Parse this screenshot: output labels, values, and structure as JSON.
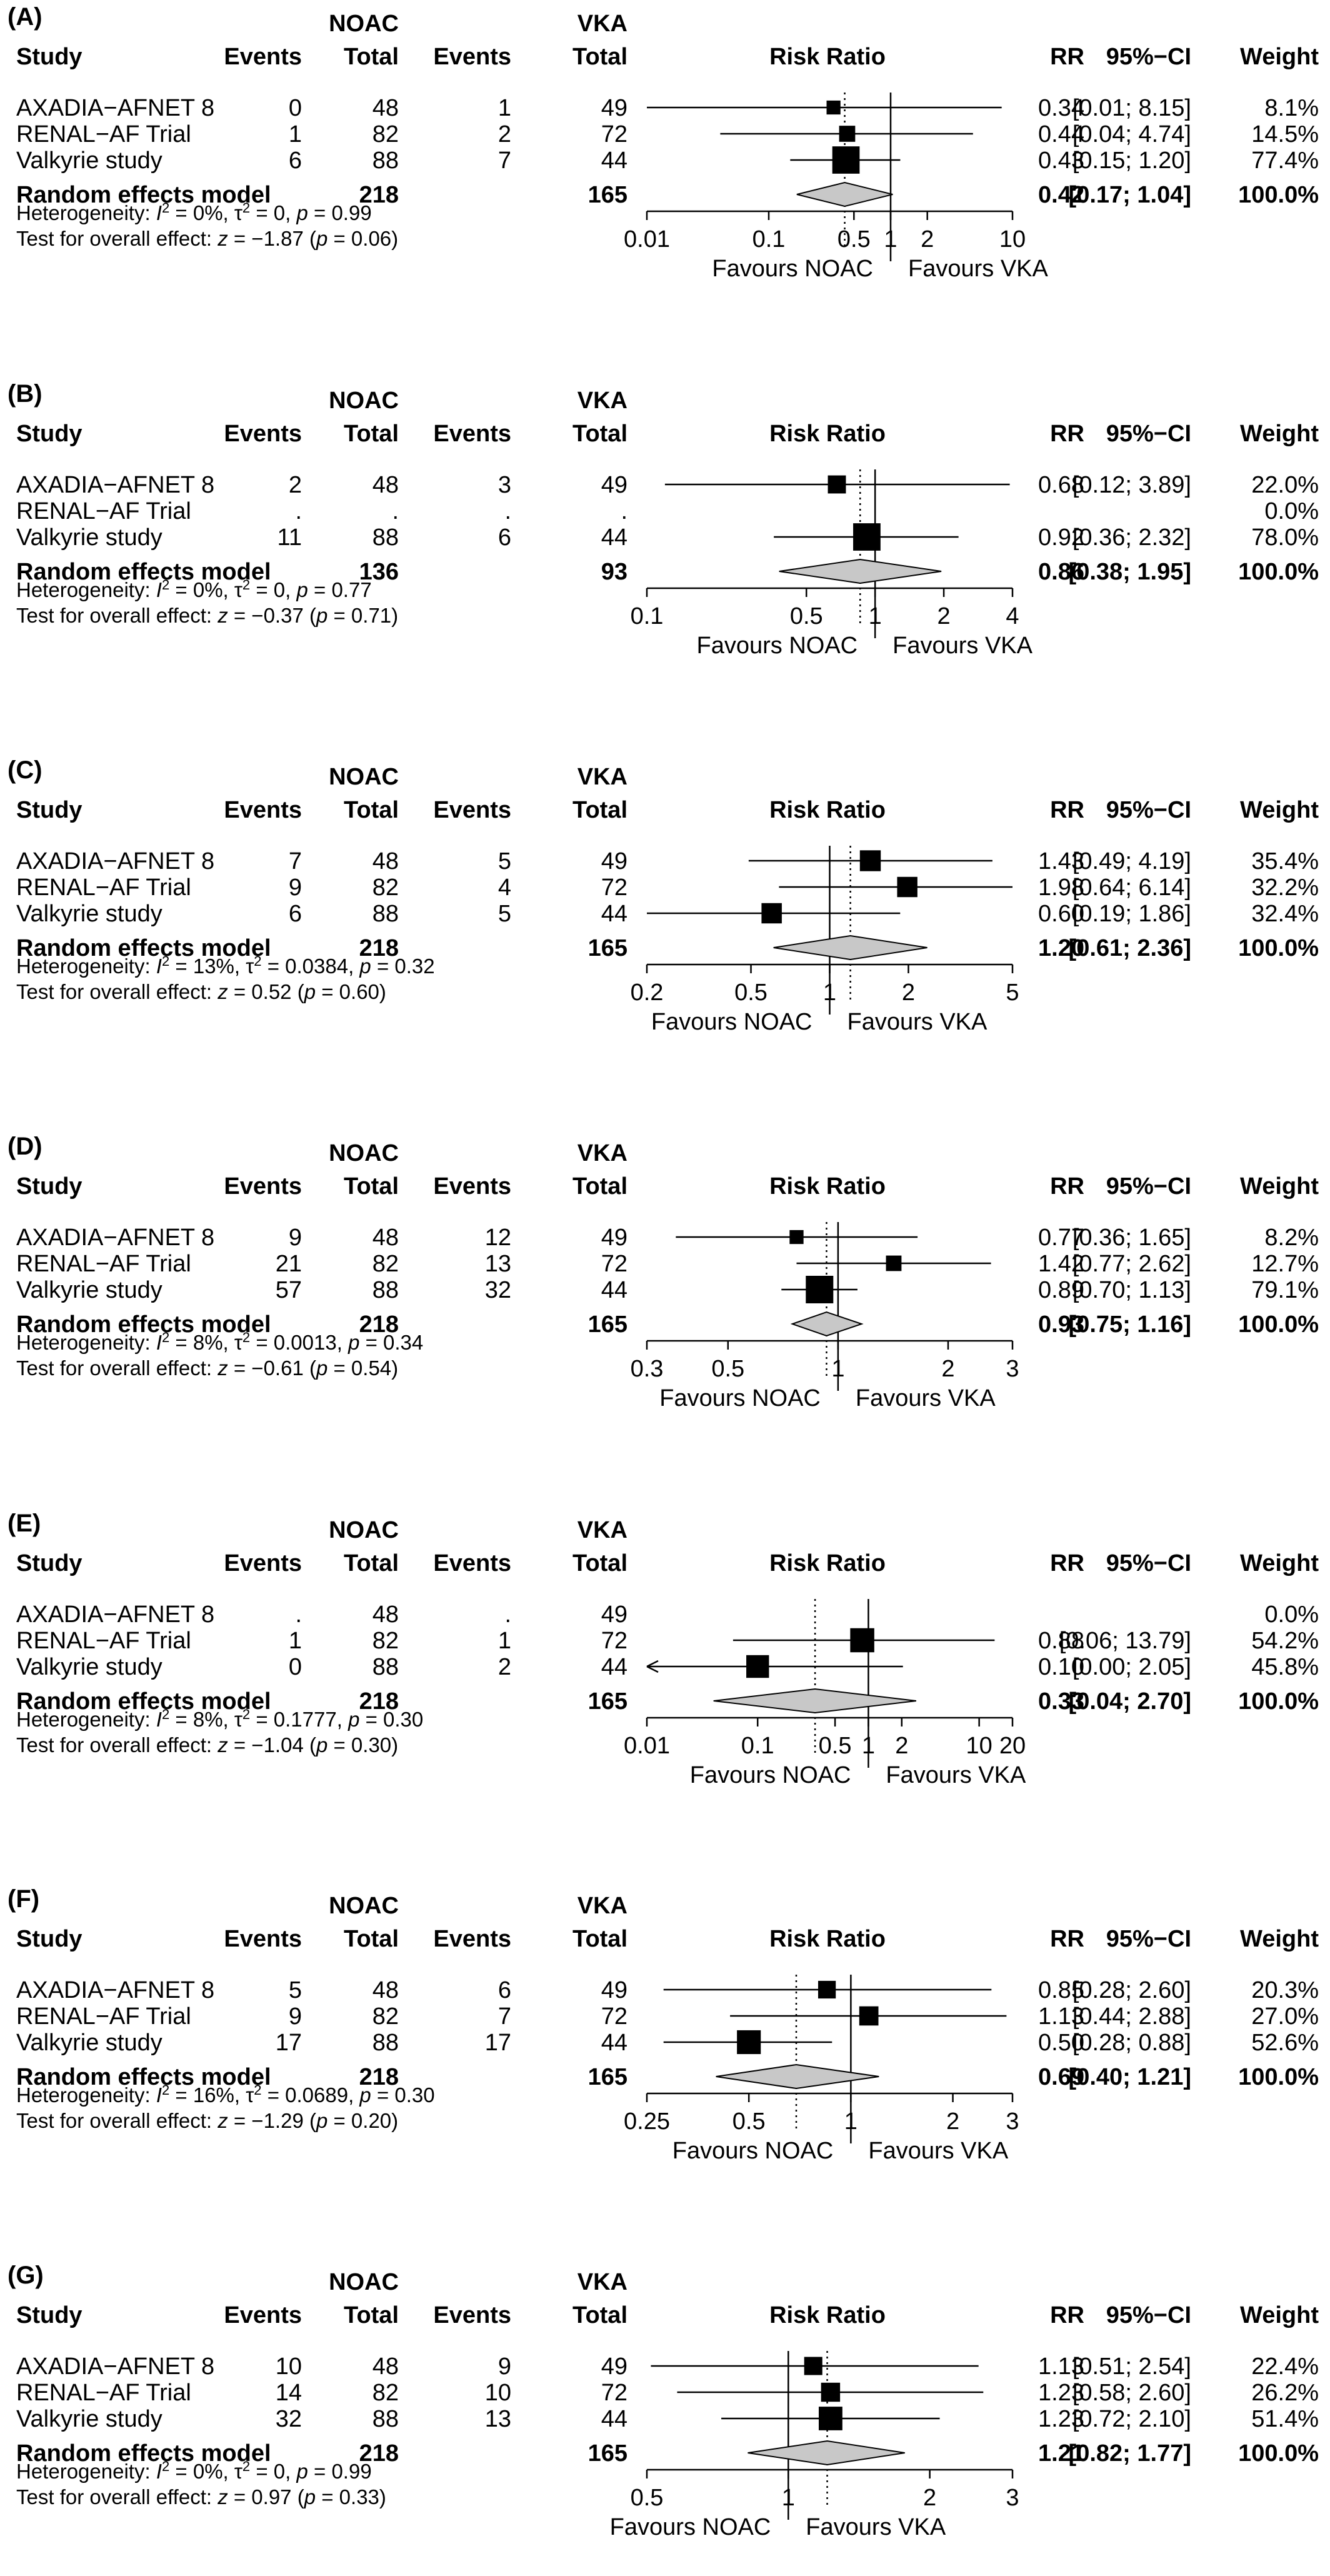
{
  "chart_data": [
    {
      "type": "forest",
      "panel": "(A)",
      "header": {
        "group1": "NOAC",
        "group2": "VKA",
        "study": "Study",
        "events": "Events",
        "total": "Total",
        "plot": "Risk Ratio",
        "rr": "RR",
        "ci": "95%−CI",
        "weight": "Weight"
      },
      "studies": [
        {
          "name": "AXADIA−AFNET 8",
          "e1": "0",
          "n1": "48",
          "e2": "1",
          "n2": "49",
          "rr": 0.34,
          "lo": 0.01,
          "hi": 8.15,
          "rr_text": "0.34",
          "ci_text": "[0.01; 8.15]",
          "weight_text": "8.1%",
          "weight": 8.1,
          "arrow_left": false
        },
        {
          "name": "RENAL−AF Trial",
          "e1": "1",
          "n1": "82",
          "e2": "2",
          "n2": "72",
          "rr": 0.44,
          "lo": 0.04,
          "hi": 4.74,
          "rr_text": "0.44",
          "ci_text": "[0.04; 4.74]",
          "weight_text": "14.5%",
          "weight": 14.5,
          "arrow_left": false
        },
        {
          "name": "Valkyrie study",
          "e1": "6",
          "n1": "88",
          "e2": "7",
          "n2": "44",
          "rr": 0.43,
          "lo": 0.15,
          "hi": 1.2,
          "rr_text": "0.43",
          "ci_text": "[0.15; 1.20]",
          "weight_text": "77.4%",
          "weight": 77.4,
          "arrow_left": false
        }
      ],
      "summary": {
        "label": "Random effects model",
        "n1": "218",
        "n2": "165",
        "rr": 0.42,
        "lo": 0.17,
        "hi": 1.04,
        "rr_text": "0.42",
        "ci_text": "[0.17; 1.04]",
        "weight_text": "100.0%"
      },
      "heterogeneity": {
        "prefix": "Heterogeneity: ",
        "i2": "I",
        "i2_rest": " = 0%, ",
        "tau": "τ",
        "tau_rest": " = 0, ",
        "p": "p",
        "p_rest": " = 0.99"
      },
      "overall_test": {
        "prefix": "Test for overall effect: ",
        "z": "z",
        "z_rest": " = −1.87 (",
        "p": "p",
        "p_rest": " = 0.06)"
      },
      "axis": {
        "scale": "log",
        "min": 0.01,
        "max": 10,
        "ticks": [
          0.01,
          0.1,
          0.5,
          1,
          2,
          10
        ],
        "tick_labels": [
          "0.01",
          "0.1",
          "0.5",
          "1",
          "2",
          "10"
        ],
        "favours_left": "Favours NOAC",
        "favours_right": "Favours VKA"
      }
    },
    {
      "type": "forest",
      "panel": "(B)",
      "header": {
        "group1": "NOAC",
        "group2": "VKA",
        "study": "Study",
        "events": "Events",
        "total": "Total",
        "plot": "Risk Ratio",
        "rr": "RR",
        "ci": "95%−CI",
        "weight": "Weight"
      },
      "studies": [
        {
          "name": "AXADIA−AFNET 8",
          "e1": "2",
          "n1": "48",
          "e2": "3",
          "n2": "49",
          "rr": 0.68,
          "lo": 0.12,
          "hi": 3.89,
          "rr_text": "0.68",
          "ci_text": "[0.12; 3.89]",
          "weight_text": "22.0%",
          "weight": 22.0,
          "arrow_left": false
        },
        {
          "name": "RENAL−AF Trial",
          "e1": ".",
          "n1": ".",
          "e2": ".",
          "n2": ".",
          "rr": null,
          "lo": null,
          "hi": null,
          "rr_text": "",
          "ci_text": "",
          "weight_text": "0.0%",
          "weight": 0,
          "arrow_left": false
        },
        {
          "name": "Valkyrie study",
          "e1": "11",
          "n1": "88",
          "e2": "6",
          "n2": "44",
          "rr": 0.92,
          "lo": 0.36,
          "hi": 2.32,
          "rr_text": "0.92",
          "ci_text": "[0.36; 2.32]",
          "weight_text": "78.0%",
          "weight": 78.0,
          "arrow_left": false
        }
      ],
      "summary": {
        "label": "Random effects model",
        "n1": "136",
        "n2": "93",
        "rr": 0.86,
        "lo": 0.38,
        "hi": 1.95,
        "rr_text": "0.86",
        "ci_text": "[0.38; 1.95]",
        "weight_text": "100.0%"
      },
      "heterogeneity": {
        "prefix": "Heterogeneity: ",
        "i2": "I",
        "i2_rest": " = 0%, ",
        "tau": "τ",
        "tau_rest": " = 0, ",
        "p": "p",
        "p_rest": " = 0.77"
      },
      "overall_test": {
        "prefix": "Test for overall effect: ",
        "z": "z",
        "z_rest": " = −0.37 (",
        "p": "p",
        "p_rest": " = 0.71)"
      },
      "axis": {
        "scale": "log",
        "min": 0.1,
        "max": 4,
        "ticks": [
          0.1,
          0.5,
          1,
          2,
          4
        ],
        "tick_labels": [
          "0.1",
          "0.5",
          "1",
          "2",
          "4"
        ],
        "favours_left": "Favours NOAC",
        "favours_right": "Favours VKA"
      }
    },
    {
      "type": "forest",
      "panel": "(C)",
      "header": {
        "group1": "NOAC",
        "group2": "VKA",
        "study": "Study",
        "events": "Events",
        "total": "Total",
        "plot": "Risk Ratio",
        "rr": "RR",
        "ci": "95%−CI",
        "weight": "Weight"
      },
      "studies": [
        {
          "name": "AXADIA−AFNET 8",
          "e1": "7",
          "n1": "48",
          "e2": "5",
          "n2": "49",
          "rr": 1.43,
          "lo": 0.49,
          "hi": 4.19,
          "rr_text": "1.43",
          "ci_text": "[0.49; 4.19]",
          "weight_text": "35.4%",
          "weight": 35.4,
          "arrow_left": false
        },
        {
          "name": "RENAL−AF Trial",
          "e1": "9",
          "n1": "82",
          "e2": "4",
          "n2": "72",
          "rr": 1.98,
          "lo": 0.64,
          "hi": 6.14,
          "rr_text": "1.98",
          "ci_text": "[0.64; 6.14]",
          "weight_text": "32.2%",
          "weight": 32.2,
          "arrow_left": false
        },
        {
          "name": "Valkyrie study",
          "e1": "6",
          "n1": "88",
          "e2": "5",
          "n2": "44",
          "rr": 0.6,
          "lo": 0.19,
          "hi": 1.86,
          "rr_text": "0.60",
          "ci_text": "[0.19; 1.86]",
          "weight_text": "32.4%",
          "weight": 32.4,
          "arrow_left": false
        }
      ],
      "summary": {
        "label": "Random effects model",
        "n1": "218",
        "n2": "165",
        "rr": 1.2,
        "lo": 0.61,
        "hi": 2.36,
        "rr_text": "1.20",
        "ci_text": "[0.61; 2.36]",
        "weight_text": "100.0%"
      },
      "heterogeneity": {
        "prefix": "Heterogeneity: ",
        "i2": "I",
        "i2_rest": " = 13%, ",
        "tau": "τ",
        "tau_rest": " = 0.0384, ",
        "p": "p",
        "p_rest": " = 0.32"
      },
      "overall_test": {
        "prefix": "Test for overall effect: ",
        "z": "z",
        "z_rest": " = 0.52 (",
        "p": "p",
        "p_rest": " = 0.60)"
      },
      "axis": {
        "scale": "log",
        "min": 0.2,
        "max": 5,
        "ticks": [
          0.2,
          0.5,
          1,
          2,
          5
        ],
        "tick_labels": [
          "0.2",
          "0.5",
          "1",
          "2",
          "5"
        ],
        "favours_left": "Favours NOAC",
        "favours_right": "Favours VKA"
      }
    },
    {
      "type": "forest",
      "panel": "(D)",
      "header": {
        "group1": "NOAC",
        "group2": "VKA",
        "study": "Study",
        "events": "Events",
        "total": "Total",
        "plot": "Risk Ratio",
        "rr": "RR",
        "ci": "95%−CI",
        "weight": "Weight"
      },
      "studies": [
        {
          "name": "AXADIA−AFNET 8",
          "e1": "9",
          "n1": "48",
          "e2": "12",
          "n2": "49",
          "rr": 0.77,
          "lo": 0.36,
          "hi": 1.65,
          "rr_text": "0.77",
          "ci_text": "[0.36; 1.65]",
          "weight_text": "8.2%",
          "weight": 8.2,
          "arrow_left": false
        },
        {
          "name": "RENAL−AF Trial",
          "e1": "21",
          "n1": "82",
          "e2": "13",
          "n2": "72",
          "rr": 1.42,
          "lo": 0.77,
          "hi": 2.62,
          "rr_text": "1.42",
          "ci_text": "[0.77; 2.62]",
          "weight_text": "12.7%",
          "weight": 12.7,
          "arrow_left": false
        },
        {
          "name": "Valkyrie study",
          "e1": "57",
          "n1": "88",
          "e2": "32",
          "n2": "44",
          "rr": 0.89,
          "lo": 0.7,
          "hi": 1.13,
          "rr_text": "0.89",
          "ci_text": "[0.70; 1.13]",
          "weight_text": "79.1%",
          "weight": 79.1,
          "arrow_left": false
        }
      ],
      "summary": {
        "label": "Random effects model",
        "n1": "218",
        "n2": "165",
        "rr": 0.93,
        "lo": 0.75,
        "hi": 1.16,
        "rr_text": "0.93",
        "ci_text": "[0.75; 1.16]",
        "weight_text": "100.0%"
      },
      "heterogeneity": {
        "prefix": "Heterogeneity: ",
        "i2": "I",
        "i2_rest": " = 8%, ",
        "tau": "τ",
        "tau_rest": " = 0.0013, ",
        "p": "p",
        "p_rest": " = 0.34"
      },
      "overall_test": {
        "prefix": "Test for overall effect: ",
        "z": "z",
        "z_rest": " = −0.61 (",
        "p": "p",
        "p_rest": " = 0.54)"
      },
      "axis": {
        "scale": "log",
        "min": 0.3,
        "max": 3,
        "ticks": [
          0.3,
          0.5,
          1,
          2,
          3
        ],
        "tick_labels": [
          "0.3",
          "0.5",
          "1",
          "2",
          "3"
        ],
        "favours_left": "Favours NOAC",
        "favours_right": "Favours VKA"
      }
    },
    {
      "type": "forest",
      "panel": "(E)",
      "header": {
        "group1": "NOAC",
        "group2": "VKA",
        "study": "Study",
        "events": "Events",
        "total": "Total",
        "plot": "Risk Ratio",
        "rr": "RR",
        "ci": "95%−CI",
        "weight": "Weight"
      },
      "studies": [
        {
          "name": "AXADIA−AFNET 8",
          "e1": ".",
          "n1": "48",
          "e2": ".",
          "n2": "49",
          "rr": null,
          "lo": null,
          "hi": null,
          "rr_text": "",
          "ci_text": "",
          "weight_text": "0.0%",
          "weight": 0,
          "arrow_left": false
        },
        {
          "name": "RENAL−AF Trial",
          "e1": "1",
          "n1": "82",
          "e2": "1",
          "n2": "72",
          "rr": 0.88,
          "lo": 0.06,
          "hi": 13.79,
          "rr_text": "0.88",
          "ci_text": "[0.06; 13.79]",
          "weight_text": "54.2%",
          "weight": 54.2,
          "arrow_left": false
        },
        {
          "name": "Valkyrie study",
          "e1": "0",
          "n1": "88",
          "e2": "2",
          "n2": "44",
          "rr": 0.1,
          "lo": 0.0,
          "hi": 2.05,
          "rr_text": "0.10",
          "ci_text": "[0.00; 2.05]",
          "weight_text": "45.8%",
          "weight": 45.8,
          "arrow_left": true
        }
      ],
      "summary": {
        "label": "Random effects model",
        "n1": "218",
        "n2": "165",
        "rr": 0.33,
        "lo": 0.04,
        "hi": 2.7,
        "rr_text": "0.33",
        "ci_text": "[0.04; 2.70]",
        "weight_text": "100.0%"
      },
      "heterogeneity": {
        "prefix": "Heterogeneity: ",
        "i2": "I",
        "i2_rest": " = 8%, ",
        "tau": "τ",
        "tau_rest": " = 0.1777, ",
        "p": "p",
        "p_rest": " = 0.30"
      },
      "overall_test": {
        "prefix": "Test for overall effect: ",
        "z": "z",
        "z_rest": " = −1.04 (",
        "p": "p",
        "p_rest": " = 0.30)"
      },
      "axis": {
        "scale": "log",
        "min": 0.01,
        "max": 20,
        "ticks": [
          0.01,
          0.1,
          0.5,
          1,
          2,
          10,
          20
        ],
        "tick_labels": [
          "0.01",
          "0.1",
          "0.5",
          "1",
          "2",
          "10",
          "20"
        ],
        "favours_left": "Favours NOAC",
        "favours_right": "Favours VKA"
      }
    },
    {
      "type": "forest",
      "panel": "(F)",
      "header": {
        "group1": "NOAC",
        "group2": "VKA",
        "study": "Study",
        "events": "Events",
        "total": "Total",
        "plot": "Risk Ratio",
        "rr": "RR",
        "ci": "95%−CI",
        "weight": "Weight"
      },
      "studies": [
        {
          "name": "AXADIA−AFNET 8",
          "e1": "5",
          "n1": "48",
          "e2": "6",
          "n2": "49",
          "rr": 0.85,
          "lo": 0.28,
          "hi": 2.6,
          "rr_text": "0.85",
          "ci_text": "[0.28; 2.60]",
          "weight_text": "20.3%",
          "weight": 20.3,
          "arrow_left": false
        },
        {
          "name": "RENAL−AF Trial",
          "e1": "9",
          "n1": "82",
          "e2": "7",
          "n2": "72",
          "rr": 1.13,
          "lo": 0.44,
          "hi": 2.88,
          "rr_text": "1.13",
          "ci_text": "[0.44; 2.88]",
          "weight_text": "27.0%",
          "weight": 27.0,
          "arrow_left": false
        },
        {
          "name": "Valkyrie study",
          "e1": "17",
          "n1": "88",
          "e2": "17",
          "n2": "44",
          "rr": 0.5,
          "lo": 0.28,
          "hi": 0.88,
          "rr_text": "0.50",
          "ci_text": "[0.28; 0.88]",
          "weight_text": "52.6%",
          "weight": 52.6,
          "arrow_left": false
        }
      ],
      "summary": {
        "label": "Random effects model",
        "n1": "218",
        "n2": "165",
        "rr": 0.69,
        "lo": 0.4,
        "hi": 1.21,
        "rr_text": "0.69",
        "ci_text": "[0.40; 1.21]",
        "weight_text": "100.0%"
      },
      "heterogeneity": {
        "prefix": "Heterogeneity: ",
        "i2": "I",
        "i2_rest": " = 16%, ",
        "tau": "τ",
        "tau_rest": " = 0.0689, ",
        "p": "p",
        "p_rest": " = 0.30"
      },
      "overall_test": {
        "prefix": "Test for overall effect: ",
        "z": "z",
        "z_rest": " = −1.29 (",
        "p": "p",
        "p_rest": " = 0.20)"
      },
      "axis": {
        "scale": "log",
        "min": 0.25,
        "max": 3,
        "ticks": [
          0.25,
          0.5,
          1,
          2,
          3
        ],
        "tick_labels": [
          "0.25",
          "0.5",
          "1",
          "2",
          "3"
        ],
        "favours_left": "Favours NOAC",
        "favours_right": "Favours VKA"
      }
    },
    {
      "type": "forest",
      "panel": "(G)",
      "header": {
        "group1": "NOAC",
        "group2": "VKA",
        "study": "Study",
        "events": "Events",
        "total": "Total",
        "plot": "Risk Ratio",
        "rr": "RR",
        "ci": "95%−CI",
        "weight": "Weight"
      },
      "studies": [
        {
          "name": "AXADIA−AFNET 8",
          "e1": "10",
          "n1": "48",
          "e2": "9",
          "n2": "49",
          "rr": 1.13,
          "lo": 0.51,
          "hi": 2.54,
          "rr_text": "1.13",
          "ci_text": "[0.51; 2.54]",
          "weight_text": "22.4%",
          "weight": 22.4,
          "arrow_left": false
        },
        {
          "name": "RENAL−AF Trial",
          "e1": "14",
          "n1": "82",
          "e2": "10",
          "n2": "72",
          "rr": 1.23,
          "lo": 0.58,
          "hi": 2.6,
          "rr_text": "1.23",
          "ci_text": "[0.58; 2.60]",
          "weight_text": "26.2%",
          "weight": 26.2,
          "arrow_left": false
        },
        {
          "name": "Valkyrie study",
          "e1": "32",
          "n1": "88",
          "e2": "13",
          "n2": "44",
          "rr": 1.23,
          "lo": 0.72,
          "hi": 2.1,
          "rr_text": "1.23",
          "ci_text": "[0.72; 2.10]",
          "weight_text": "51.4%",
          "weight": 51.4,
          "arrow_left": false
        }
      ],
      "summary": {
        "label": "Random effects model",
        "n1": "218",
        "n2": "165",
        "rr": 1.21,
        "lo": 0.82,
        "hi": 1.77,
        "rr_text": "1.21",
        "ci_text": "[0.82; 1.77]",
        "weight_text": "100.0%"
      },
      "heterogeneity": {
        "prefix": "Heterogeneity: ",
        "i2": "I",
        "i2_rest": " = 0%, ",
        "tau": "τ",
        "tau_rest": " = 0, ",
        "p": "p",
        "p_rest": " = 0.99"
      },
      "overall_test": {
        "prefix": "Test for overall effect: ",
        "z": "z",
        "z_rest": " = 0.97 (",
        "p": "p",
        "p_rest": " = 0.33)"
      },
      "axis": {
        "scale": "log",
        "min": 0.5,
        "max": 3,
        "ticks": [
          0.5,
          1,
          2,
          3
        ],
        "tick_labels": [
          "0.5",
          "1",
          "2",
          "3"
        ],
        "favours_left": "Favours NOAC",
        "favours_right": "Favours VKA"
      }
    }
  ],
  "colors": {
    "diamond_fill": "#c8c8c8",
    "ink": "#000000",
    "ci_line": "#000000"
  }
}
